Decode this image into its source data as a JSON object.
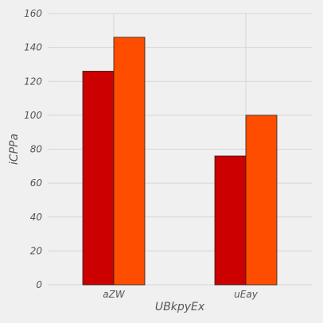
{
  "chart_data": {
    "type": "bar",
    "title": "",
    "xlabel": "UBkpyEx",
    "ylabel": "iCPPa",
    "categories": [
      "aZW",
      "uEay"
    ],
    "series": [
      {
        "values": [
          126,
          76
        ],
        "color": "#cc0000"
      },
      {
        "values": [
          146,
          100
        ],
        "color": "#ff4d00"
      }
    ],
    "ylim": [
      0,
      160
    ],
    "yticks": [
      0,
      20,
      40,
      60,
      80,
      100,
      120,
      140,
      160
    ],
    "grid": true,
    "legend": "none",
    "background": "#f0f0f0",
    "grid_color": "#d6d6d6",
    "tick_label_color": "#555555"
  }
}
